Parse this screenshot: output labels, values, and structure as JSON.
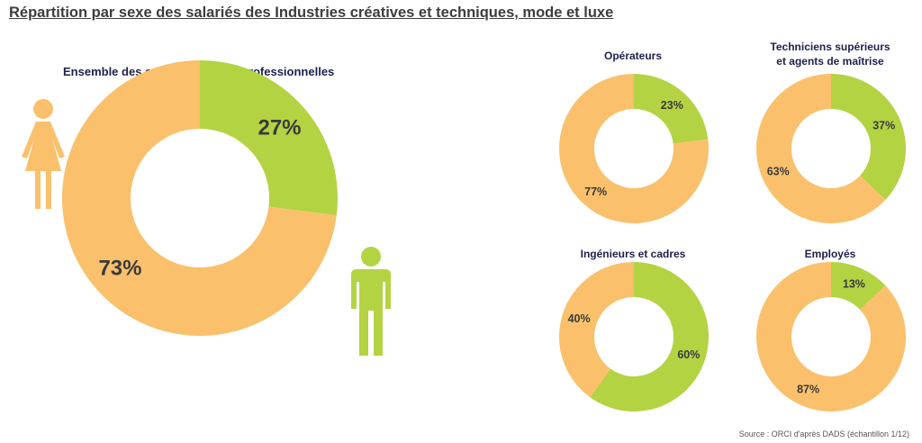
{
  "title": "Répartition par sexe des salariés des Industries créatives et techniques, mode et luxe",
  "source": "Source : ORCI d'après DADS (échantillon 1/12)",
  "colors": {
    "women": "#fac06c",
    "men": "#b3d343",
    "title": "#1f1f4d"
  },
  "icons": {
    "women": "female-person-icon",
    "men": "male-person-icon"
  },
  "chart_data": [
    {
      "type": "pie",
      "donut": true,
      "title": "Ensemble des catégories socio-professionnelles",
      "labels": [
        "27%",
        "73%"
      ],
      "values": [
        27,
        73
      ]
    },
    {
      "type": "pie",
      "donut": true,
      "title": "Opérateurs",
      "labels": [
        "23%",
        "77%"
      ],
      "values": [
        23,
        77
      ]
    },
    {
      "type": "pie",
      "donut": true,
      "title": "Techniciens supérieurs\net agents de maîtrise",
      "labels": [
        "37%",
        "63%"
      ],
      "values": [
        37,
        63
      ]
    },
    {
      "type": "pie",
      "donut": true,
      "title": "Ingénieurs et cadres",
      "labels": [
        "60%",
        "40%"
      ],
      "values": [
        60,
        40
      ]
    },
    {
      "type": "pie",
      "donut": true,
      "title": "Employés",
      "labels": [
        "13%",
        "87%"
      ],
      "values": [
        13,
        87
      ]
    }
  ]
}
